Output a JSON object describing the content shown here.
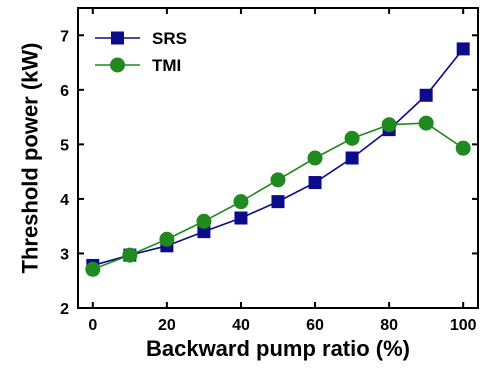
{
  "chart_data": {
    "type": "line",
    "title": "",
    "xlabel": "Backward pump ratio (%)",
    "ylabel": "Threshold power (kW)",
    "xlim": [
      -4,
      104
    ],
    "ylim": [
      2,
      7.5
    ],
    "xticks": [
      0,
      20,
      40,
      60,
      80,
      100
    ],
    "yticks": [
      2,
      3,
      4,
      5,
      6,
      7
    ],
    "grid": false,
    "legend_position": "top-left",
    "series": [
      {
        "name": "SRS",
        "marker": "square",
        "color": "#0b0b8c",
        "x": [
          0,
          10,
          20,
          30,
          40,
          50,
          60,
          70,
          80,
          90,
          100
        ],
        "values": [
          2.78,
          2.97,
          3.14,
          3.4,
          3.65,
          3.95,
          4.3,
          4.75,
          5.27,
          5.9,
          6.75
        ]
      },
      {
        "name": "TMI",
        "marker": "circle",
        "color": "#1f8a1f",
        "x": [
          0,
          10,
          20,
          30,
          40,
          50,
          60,
          70,
          80,
          90,
          100
        ],
        "values": [
          2.71,
          2.97,
          3.26,
          3.59,
          3.95,
          4.35,
          4.75,
          5.11,
          5.36,
          5.39,
          4.93
        ]
      }
    ]
  }
}
